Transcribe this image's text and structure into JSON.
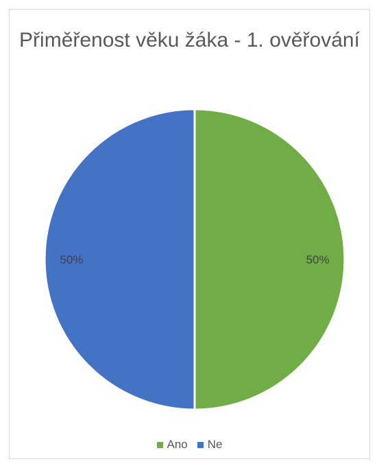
{
  "chart_data": {
    "type": "pie",
    "title": "Přiměřenost věku žáka - 1. ověřování",
    "categories": [
      "Ano",
      "Ne"
    ],
    "values": [
      50,
      50
    ],
    "labels": [
      "50%",
      "50%"
    ],
    "colors": [
      "#70ad47",
      "#4472c4"
    ],
    "legend": {
      "position": "bottom",
      "entries": [
        "Ano",
        "Ne"
      ]
    }
  }
}
